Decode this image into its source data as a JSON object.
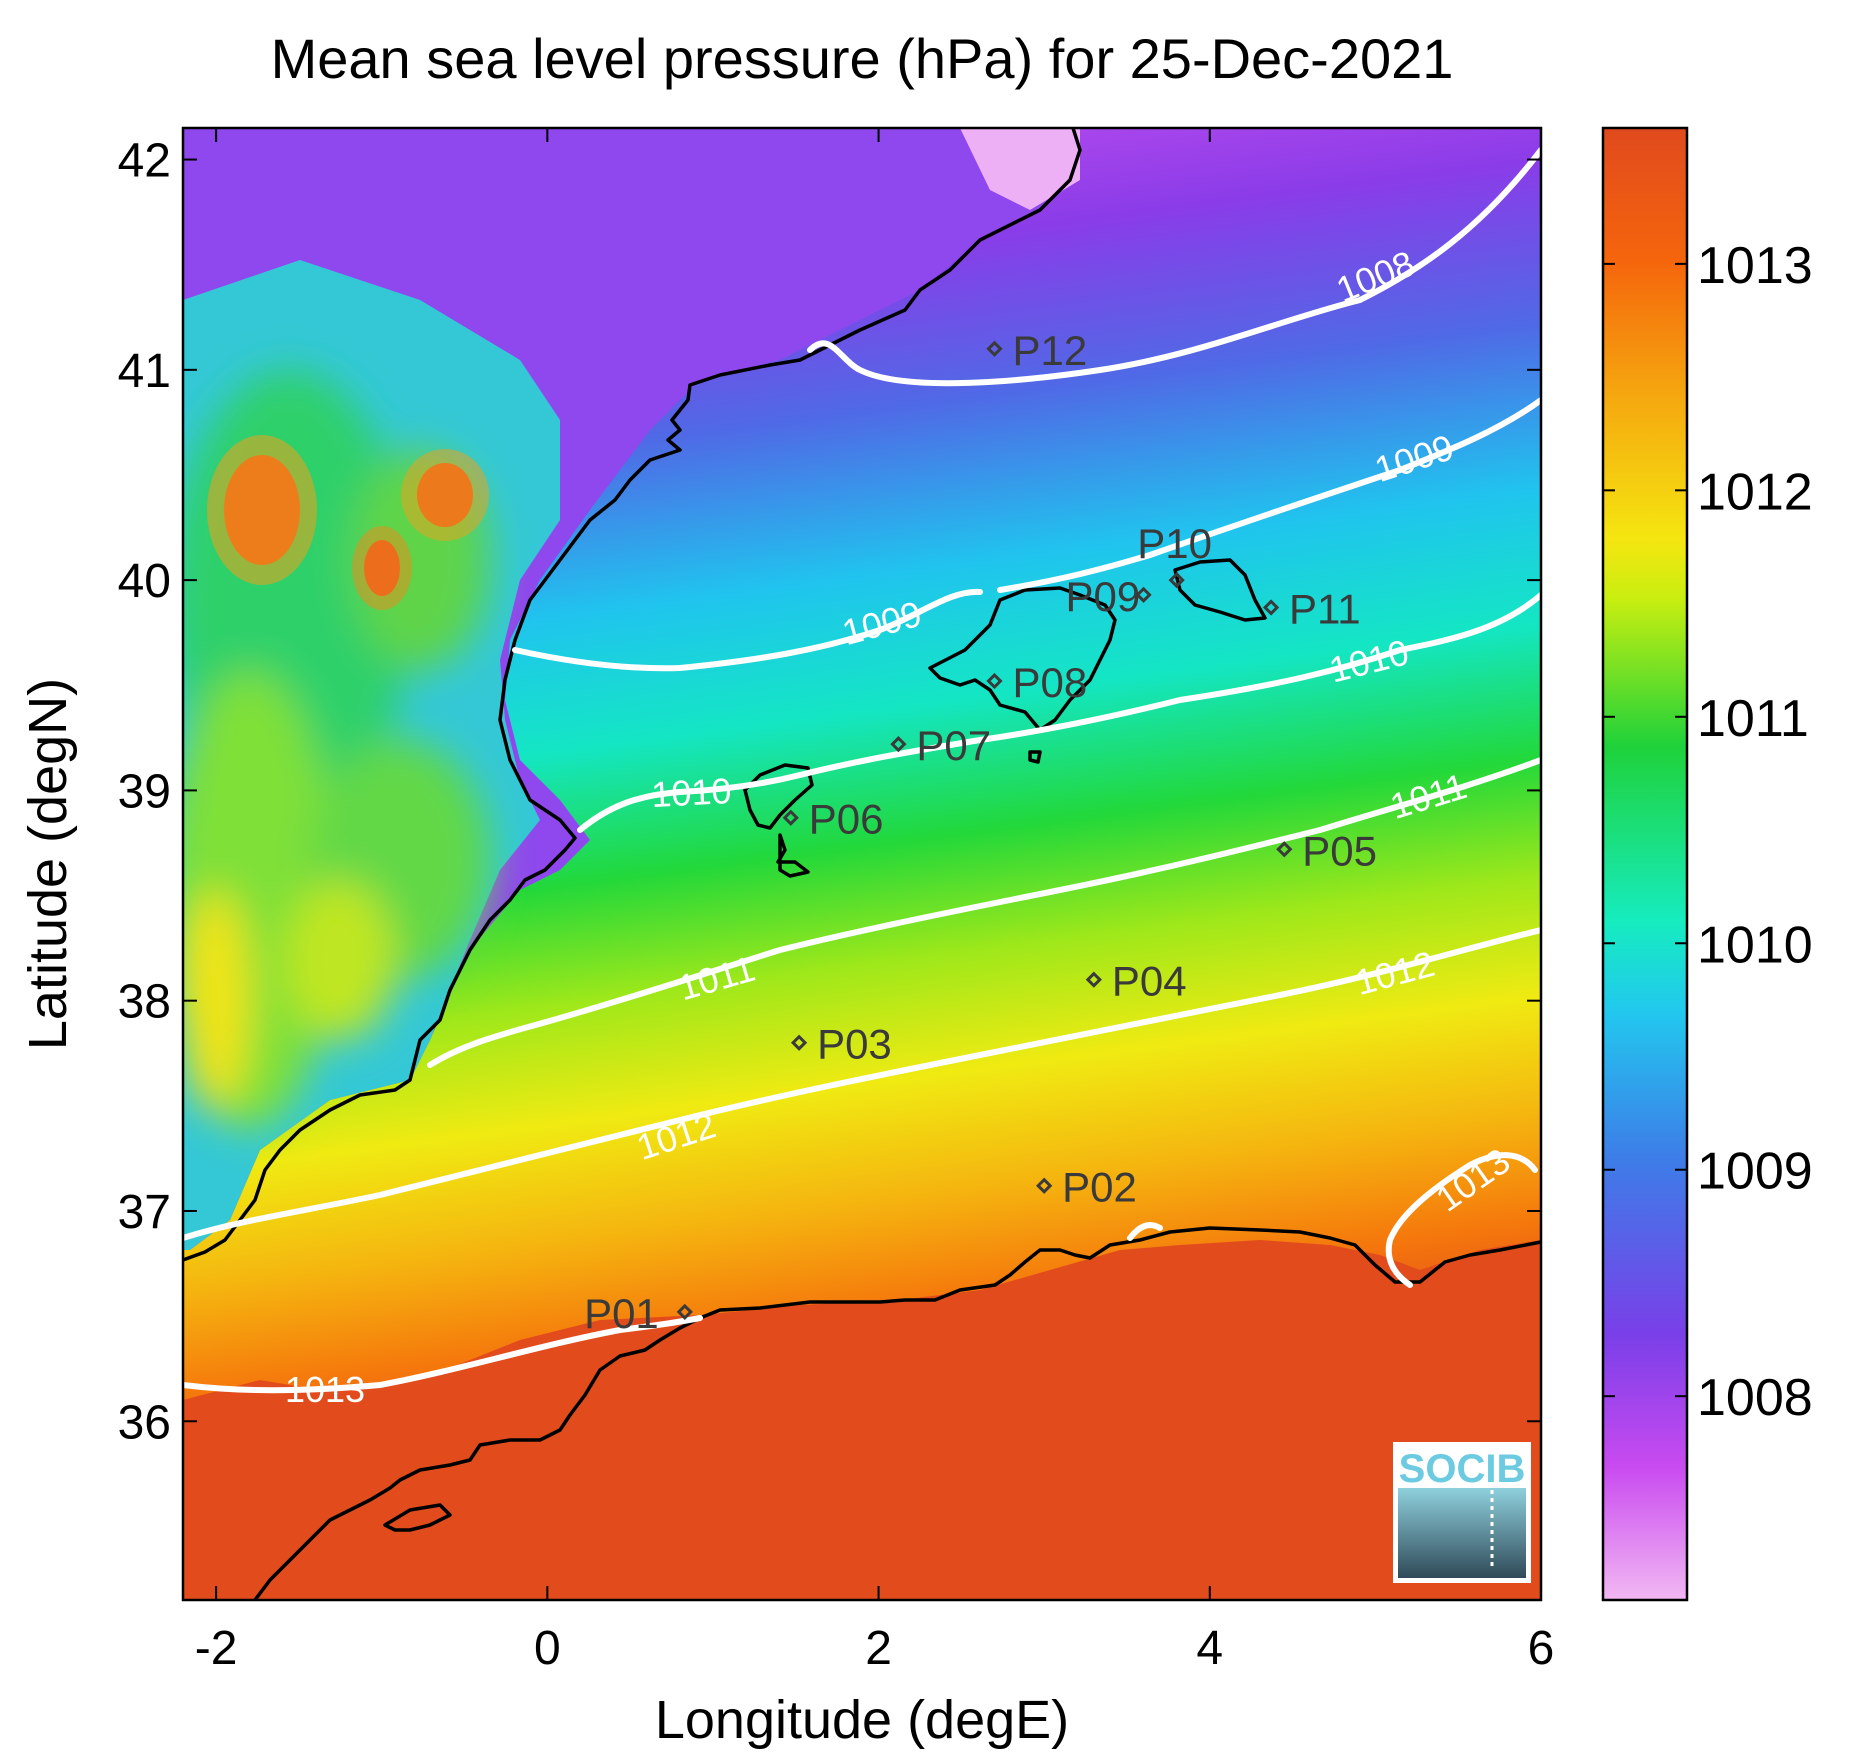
{
  "map": {
    "title": "Mean sea level pressure (hPa) for 25-Dec-2021",
    "xlabel": "Longitude (degE)",
    "ylabel": "Latitude (degN)",
    "xlim": [
      -2.2,
      6.0
    ],
    "ylim": [
      35.15,
      42.15
    ],
    "xticks": [
      "-2",
      "0",
      "2",
      "4",
      "6"
    ],
    "yticks": [
      "42",
      "41",
      "40",
      "39",
      "38",
      "37",
      "36"
    ],
    "colorbar": {
      "range": [
        1007.1,
        1013.6
      ],
      "ticks": [
        "1013",
        "1012",
        "1011",
        "1010",
        "1009",
        "1008"
      ],
      "colormap": [
        "#f2b8f2",
        "#c94bf0",
        "#7a3fe8",
        "#3d7de8",
        "#22c8ee",
        "#16ecc0",
        "#1fd23a",
        "#c8ee10",
        "#f5e610",
        "#f5a60f",
        "#f5650c",
        "#e04a1e"
      ]
    },
    "contour_color": "#ffffff",
    "contour_labels": [
      "1008",
      "1009",
      "1009",
      "1010",
      "1010",
      "1011",
      "1011",
      "1012",
      "1012",
      "1013",
      "1013"
    ],
    "stations": [
      {
        "name": "P01",
        "lon": 0.83,
        "lat": 36.52
      },
      {
        "name": "P02",
        "lon": 3.0,
        "lat": 37.12
      },
      {
        "name": "P03",
        "lon": 1.52,
        "lat": 37.8
      },
      {
        "name": "P04",
        "lon": 3.3,
        "lat": 38.1
      },
      {
        "name": "P05",
        "lon": 4.45,
        "lat": 38.72
      },
      {
        "name": "P06",
        "lon": 1.47,
        "lat": 38.87
      },
      {
        "name": "P07",
        "lon": 2.12,
        "lat": 39.22
      },
      {
        "name": "P08",
        "lon": 2.7,
        "lat": 39.52
      },
      {
        "name": "P09",
        "lon": 3.6,
        "lat": 39.93
      },
      {
        "name": "P10",
        "lon": 3.8,
        "lat": 40.0
      },
      {
        "name": "P11",
        "lon": 4.37,
        "lat": 39.87
      },
      {
        "name": "P12",
        "lon": 2.7,
        "lat": 41.1
      }
    ],
    "logo": "SOCIB"
  }
}
